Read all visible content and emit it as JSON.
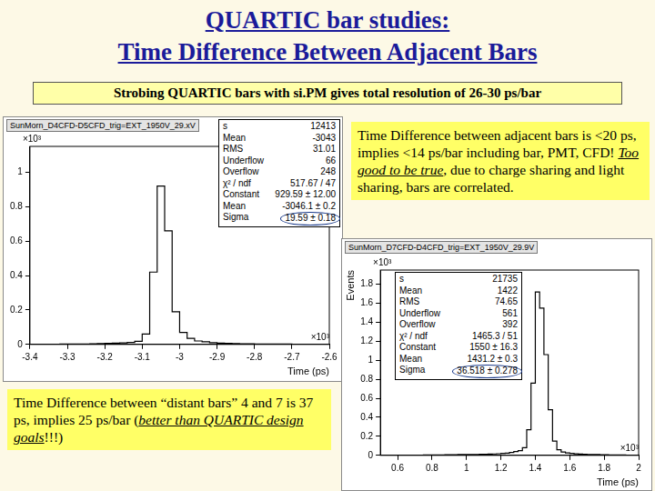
{
  "title": [
    "QUARTIC bar studies:",
    "Time Difference Between Adjacent Bars"
  ],
  "banner": "Strobing QUARTIC bars with si.PM gives total resolution of 26-30 ps/bar",
  "notes": [
    {
      "segments": [
        {
          "text": "Time Difference between adjacent bars is <20 ps, implies <14 ps/bar including bar, PMT, CFD! "
        },
        {
          "text": "Too good to be true",
          "emphasis": true
        },
        {
          "text": ", due to charge sharing and light sharing, bars are correlated."
        }
      ]
    },
    {
      "segments": [
        {
          "text": "Time Difference between “distant bars” 4 and 7 is 37 ps, implies 25 ps/bar ("
        },
        {
          "text": "better than QUARTIC design goals",
          "emphasis": true
        },
        {
          "text": "!!!)"
        }
      ]
    }
  ],
  "chart_data": [
    {
      "type": "histogram",
      "title": "SunMorn_D4CFD-D5CFD_trig=EXT_1950V_29.xV",
      "x_label": "Time (ps)",
      "x_multiplier": "×10³",
      "y_multiplier": "×10³",
      "color": "#000000",
      "grid": false,
      "bins": [
        -3.4,
        -3.38,
        -3.36,
        -3.34,
        -3.32,
        -3.3,
        -3.28,
        -3.26,
        -3.24,
        -3.22,
        -3.2,
        -3.18,
        -3.16,
        -3.14,
        -3.12,
        -3.1,
        -3.08,
        -3.06,
        -3.04,
        -3.02,
        -3,
        -2.98,
        -2.96,
        -2.94,
        -2.92,
        -2.9,
        -2.88,
        -2.86,
        -2.84,
        -2.82,
        -2.8,
        -2.78,
        -2.76,
        -2.74,
        -2.72,
        -2.7,
        -2.68,
        -2.66,
        -2.64,
        -2.62,
        -2.6
      ],
      "counts": [
        0,
        0,
        0,
        0,
        0.002,
        0.002,
        0.003,
        0.003,
        0.004,
        0.005,
        0.006,
        0.007,
        0.009,
        0.012,
        0.018,
        0.06,
        0.42,
        0.92,
        0.66,
        0.19,
        0.07,
        0.035,
        0.02,
        0.015,
        0.01,
        0.008,
        0.006,
        0.005,
        0.004,
        0.004,
        0.003,
        0.003,
        0.002,
        0.002,
        0.002,
        0.001,
        0.001,
        0.001,
        0.001,
        0.001
      ],
      "xlim": [
        -3.4,
        -2.6
      ],
      "xticks": [
        -3.4,
        -3.3,
        -3.2,
        -3.1,
        -3,
        -2.9,
        -2.8,
        -2.7,
        -2.6
      ],
      "ylim": [
        0,
        1.15
      ],
      "yticks": [
        0,
        0.2,
        0.4,
        0.6,
        0.8,
        1
      ],
      "stats": [
        [
          "s",
          "12413"
        ],
        [
          "Mean",
          "-3043"
        ],
        [
          "RMS",
          "31.01"
        ],
        [
          "Underflow",
          "66"
        ],
        [
          "Overflow",
          "248"
        ],
        [
          "χ² / ndf",
          "517.67 / 47"
        ],
        [
          "Constant",
          "929.59 ± 12.00"
        ],
        [
          "Mean",
          "-3046.1 ± 0.2"
        ],
        [
          "Sigma",
          "19.59 ± 0.18"
        ]
      ]
    },
    {
      "type": "histogram",
      "title": "SunMorn_D7CFD-D4CFD_trig=EXT_1950V_29.9V",
      "x_label": "Time (ps)",
      "y_label": "Events",
      "x_multiplier": "×10³",
      "y_multiplier": "×10³",
      "color": "#000000",
      "grid": false,
      "bins": [
        0.5,
        0.525,
        0.55,
        0.575,
        0.6,
        0.625,
        0.65,
        0.675,
        0.7,
        0.725,
        0.75,
        0.775,
        0.8,
        0.825,
        0.85,
        0.875,
        0.9,
        0.925,
        0.95,
        0.975,
        1,
        1.025,
        1.05,
        1.075,
        1.1,
        1.125,
        1.15,
        1.175,
        1.2,
        1.225,
        1.25,
        1.275,
        1.3,
        1.325,
        1.35,
        1.375,
        1.4,
        1.425,
        1.45,
        1.475,
        1.5,
        1.525,
        1.55,
        1.575,
        1.6,
        1.625,
        1.65,
        1.675,
        1.7,
        1.725,
        1.75,
        1.775,
        1.8,
        1.825,
        1.85,
        1.875,
        1.9,
        1.925,
        1.95,
        1.975,
        2
      ],
      "counts": [
        0,
        0,
        0,
        0,
        0,
        0.002,
        0.002,
        0.003,
        0.003,
        0.003,
        0.004,
        0.004,
        0.005,
        0.005,
        0.005,
        0.006,
        0.006,
        0.007,
        0.008,
        0.008,
        0.009,
        0.01,
        0.01,
        0.011,
        0.012,
        0.013,
        0.015,
        0.017,
        0.02,
        0.024,
        0.03,
        0.04,
        0.05,
        0.08,
        0.27,
        0.76,
        1.72,
        1.55,
        1.06,
        0.48,
        0.15,
        0.06,
        0.035,
        0.025,
        0.02,
        0.016,
        0.013,
        0.011,
        0.01,
        0.009,
        0.008,
        0.007,
        0.006,
        0.005,
        0.005,
        0.004,
        0.004,
        0.003,
        0.003,
        0.003
      ],
      "xlim": [
        0.5,
        2
      ],
      "xticks": [
        0.6,
        0.8,
        1,
        1.2,
        1.4,
        1.6,
        1.8,
        2
      ],
      "ylim": [
        0,
        1.95
      ],
      "yticks": [
        0,
        0.2,
        0.4,
        0.6,
        0.8,
        1,
        1.2,
        1.4,
        1.6,
        1.8
      ],
      "stats": [
        [
          "s",
          "21735"
        ],
        [
          "Mean",
          "1422"
        ],
        [
          "RMS",
          "74.65"
        ],
        [
          "Underflow",
          "561"
        ],
        [
          "Overflow",
          "392"
        ],
        [
          "χ² / ndf",
          "1465.3 / 51"
        ],
        [
          "Constant",
          "1550 ± 16.3"
        ],
        [
          "Mean",
          "1431.2 ± 0.3"
        ],
        [
          "Sigma",
          "36.518 ± 0.278"
        ]
      ]
    }
  ]
}
